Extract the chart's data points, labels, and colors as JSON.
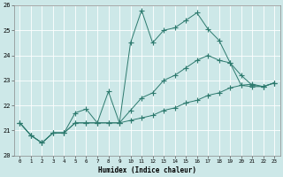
{
  "background_color": "#cde8e8",
  "grid_color": "#b8d8d8",
  "line_color": "#2d7a6e",
  "xlabel": "Humidex (Indice chaleur)",
  "xlim": [
    -0.5,
    23.5
  ],
  "ylim": [
    20,
    26
  ],
  "yticks": [
    20,
    21,
    22,
    23,
    24,
    25,
    26
  ],
  "xticks": [
    0,
    1,
    2,
    3,
    4,
    5,
    6,
    7,
    8,
    9,
    10,
    11,
    12,
    13,
    14,
    15,
    16,
    17,
    18,
    19,
    20,
    21,
    22,
    23
  ],
  "series1_x": [
    0,
    1,
    2,
    3,
    4,
    5,
    6,
    7,
    8,
    9,
    10,
    11,
    12,
    13,
    14,
    15,
    16,
    17,
    18,
    19,
    20,
    21,
    22,
    23
  ],
  "series1_y": [
    21.3,
    20.8,
    20.5,
    20.9,
    20.9,
    21.7,
    21.85,
    21.3,
    22.55,
    21.3,
    24.5,
    25.8,
    24.5,
    25.0,
    25.1,
    25.4,
    25.7,
    25.05,
    24.6,
    23.7,
    23.2,
    22.8,
    22.75,
    22.9
  ],
  "series2_x": [
    0,
    1,
    2,
    3,
    4,
    5,
    6,
    7,
    8,
    9,
    10,
    11,
    12,
    13,
    14,
    15,
    16,
    17,
    18,
    19,
    20,
    21,
    22,
    23
  ],
  "series2_y": [
    21.3,
    20.8,
    20.5,
    20.9,
    20.9,
    21.3,
    21.3,
    21.3,
    21.3,
    21.3,
    21.8,
    22.3,
    22.5,
    23.0,
    23.2,
    23.5,
    23.8,
    24.0,
    23.8,
    23.7,
    22.8,
    22.75,
    22.75,
    22.9
  ],
  "series3_x": [
    0,
    1,
    2,
    3,
    4,
    5,
    6,
    7,
    8,
    9,
    10,
    11,
    12,
    13,
    14,
    15,
    16,
    17,
    18,
    19,
    20,
    21,
    22,
    23
  ],
  "series3_y": [
    21.3,
    20.8,
    20.5,
    20.9,
    20.9,
    21.3,
    21.3,
    21.3,
    21.3,
    21.3,
    21.4,
    21.5,
    21.6,
    21.8,
    21.9,
    22.1,
    22.2,
    22.4,
    22.5,
    22.7,
    22.8,
    22.85,
    22.75,
    22.9
  ]
}
